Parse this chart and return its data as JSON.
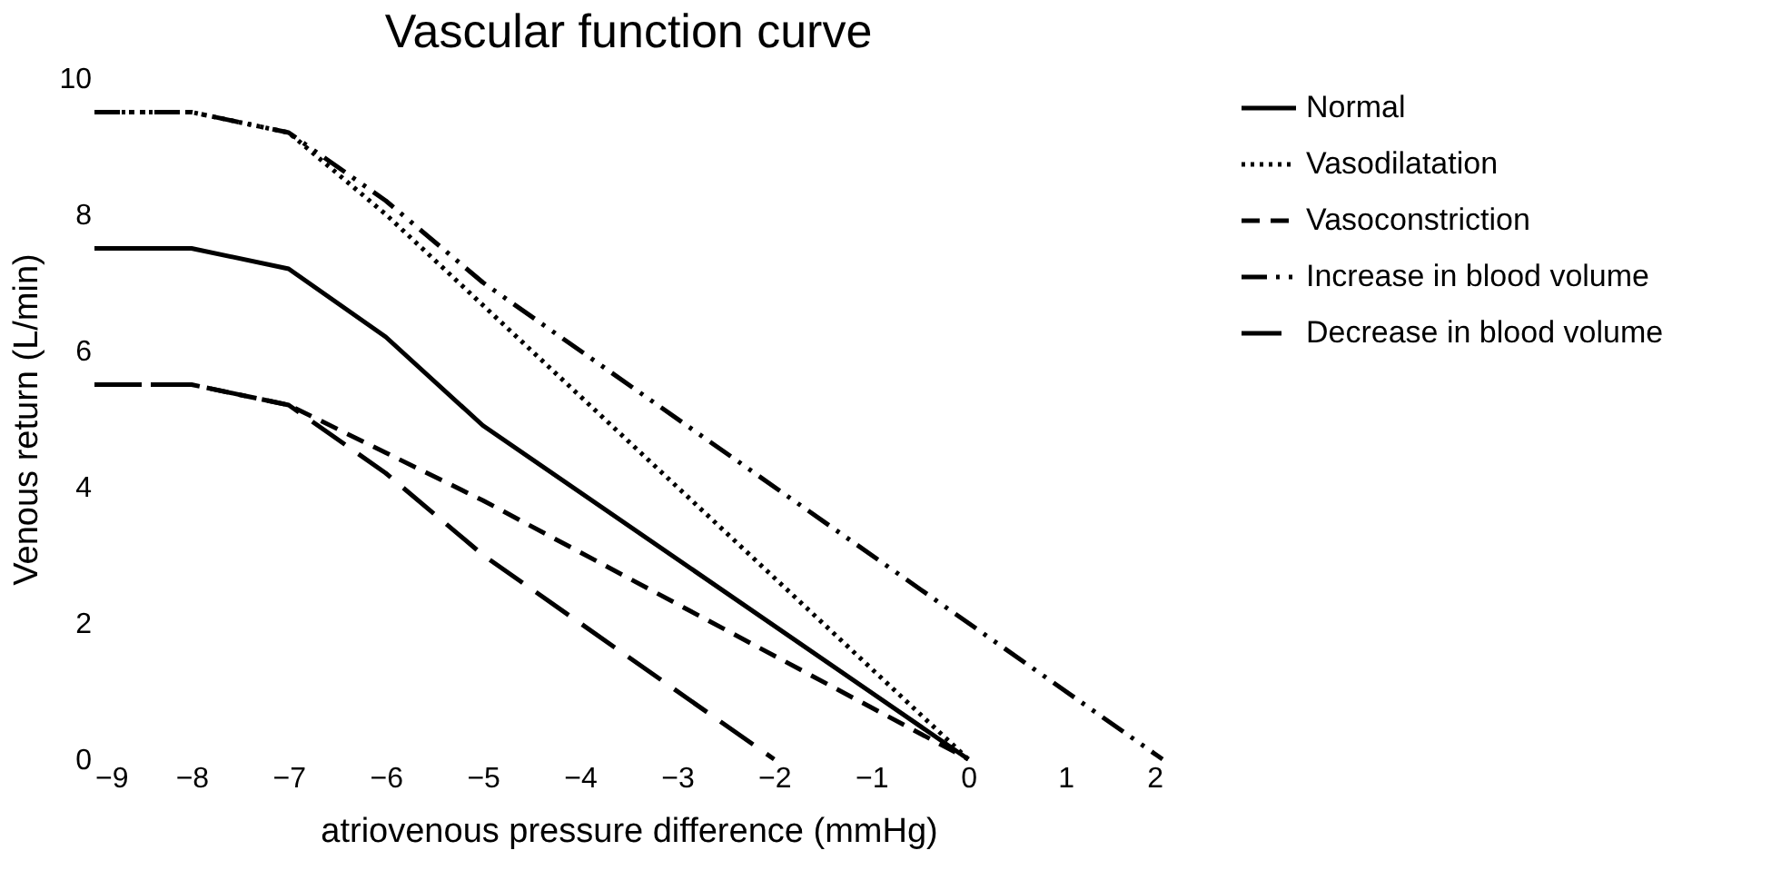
{
  "chart_data": {
    "type": "line",
    "title": "Vascular function curve",
    "xlabel": "atriovenous pressure difference (mmHg)",
    "ylabel": "Venous return (L/min)",
    "xlim": [
      -9,
      2
    ],
    "ylim": [
      0,
      10
    ],
    "xticks": [
      -9,
      -8,
      -7,
      -6,
      -5,
      -4,
      -3,
      -2,
      -1,
      0,
      1,
      2
    ],
    "yticks": [
      0,
      2,
      4,
      6,
      8,
      10
    ],
    "grid": false,
    "legend": "top right",
    "marker": "none",
    "series": [
      {
        "name": "Normal",
        "color": "#000000",
        "line_style": "solid",
        "x": [
          -9,
          -8,
          -7,
          -6,
          -5,
          0
        ],
        "values": [
          7.5,
          7.5,
          7.2,
          6.2,
          4.9,
          0
        ]
      },
      {
        "name": "Vasodilatation",
        "color": "#000000",
        "line_style": "dotted",
        "x": [
          -9,
          -8,
          -7,
          -6,
          0
        ],
        "values": [
          9.5,
          9.5,
          9.2,
          8.0,
          0
        ]
      },
      {
        "name": "Vasoconstriction",
        "color": "#000000",
        "line_style": "dashed",
        "x": [
          -9,
          -8,
          -7,
          -6,
          -5,
          0
        ],
        "values": [
          5.5,
          5.5,
          5.2,
          4.5,
          3.8,
          0
        ]
      },
      {
        "name": "Increase in blood volume",
        "color": "#000000",
        "line_style": "dashdotdot",
        "x": [
          -9,
          -8,
          -7,
          -6,
          -5,
          2
        ],
        "values": [
          9.5,
          9.5,
          9.2,
          8.2,
          7.0,
          0
        ]
      },
      {
        "name": "Decrease in blood volume",
        "color": "#000000",
        "line_style": "longdash",
        "x": [
          -9,
          -8,
          -7,
          -6,
          -5,
          -2
        ],
        "values": [
          5.5,
          5.5,
          5.2,
          4.2,
          3.0,
          0
        ]
      }
    ]
  }
}
